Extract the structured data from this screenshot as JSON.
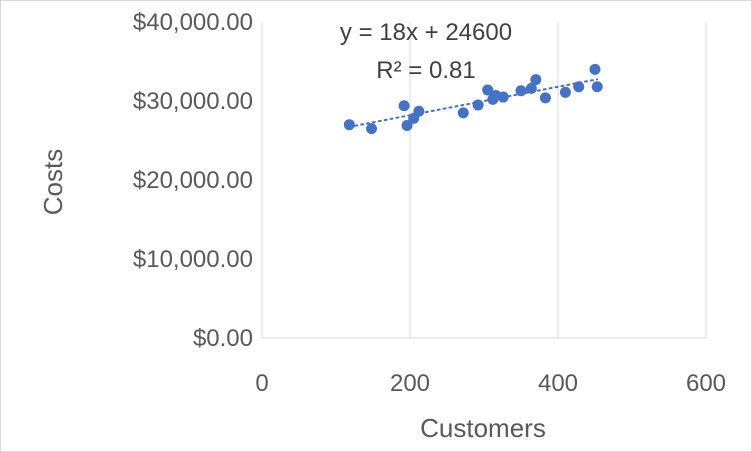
{
  "chart_data": {
    "type": "scatter",
    "title": "",
    "xlabel": "Customers",
    "ylabel": "Costs",
    "xlim": [
      0,
      600
    ],
    "ylim": [
      0,
      40000
    ],
    "x_ticks": [
      0,
      200,
      400,
      600
    ],
    "y_ticks": [
      0,
      10000,
      20000,
      30000,
      40000
    ],
    "x_tick_labels": [
      "0",
      "200",
      "400",
      "600"
    ],
    "y_tick_labels": [
      "$0.00",
      "$10,000.00",
      "$20,000.00",
      "$30,000.00",
      "$40,000.00"
    ],
    "grid": {
      "vertical": true,
      "horizontal": false
    },
    "legend": "none",
    "colors": {
      "points": "#4472c4",
      "trendline": "#4472c4",
      "grid": "#d9d9d9",
      "text": "#595959"
    },
    "points": [
      {
        "x": 118,
        "y": 27000
      },
      {
        "x": 148,
        "y": 26500
      },
      {
        "x": 192,
        "y": 29400
      },
      {
        "x": 196,
        "y": 26900
      },
      {
        "x": 205,
        "y": 27800
      },
      {
        "x": 212,
        "y": 28700
      },
      {
        "x": 272,
        "y": 28500
      },
      {
        "x": 292,
        "y": 29500
      },
      {
        "x": 305,
        "y": 31400
      },
      {
        "x": 312,
        "y": 30200
      },
      {
        "x": 316,
        "y": 30700
      },
      {
        "x": 326,
        "y": 30500
      },
      {
        "x": 350,
        "y": 31300
      },
      {
        "x": 364,
        "y": 31600
      },
      {
        "x": 370,
        "y": 32700
      },
      {
        "x": 383,
        "y": 30400
      },
      {
        "x": 410,
        "y": 31100
      },
      {
        "x": 428,
        "y": 31800
      },
      {
        "x": 450,
        "y": 34000
      },
      {
        "x": 453,
        "y": 31800
      }
    ],
    "trendline": {
      "type": "linear",
      "slope": 18,
      "intercept": 24600,
      "x_range": [
        118,
        453
      ],
      "equation_label": "y = 18x + 24600",
      "r2_label": "R² = 0.81"
    }
  }
}
